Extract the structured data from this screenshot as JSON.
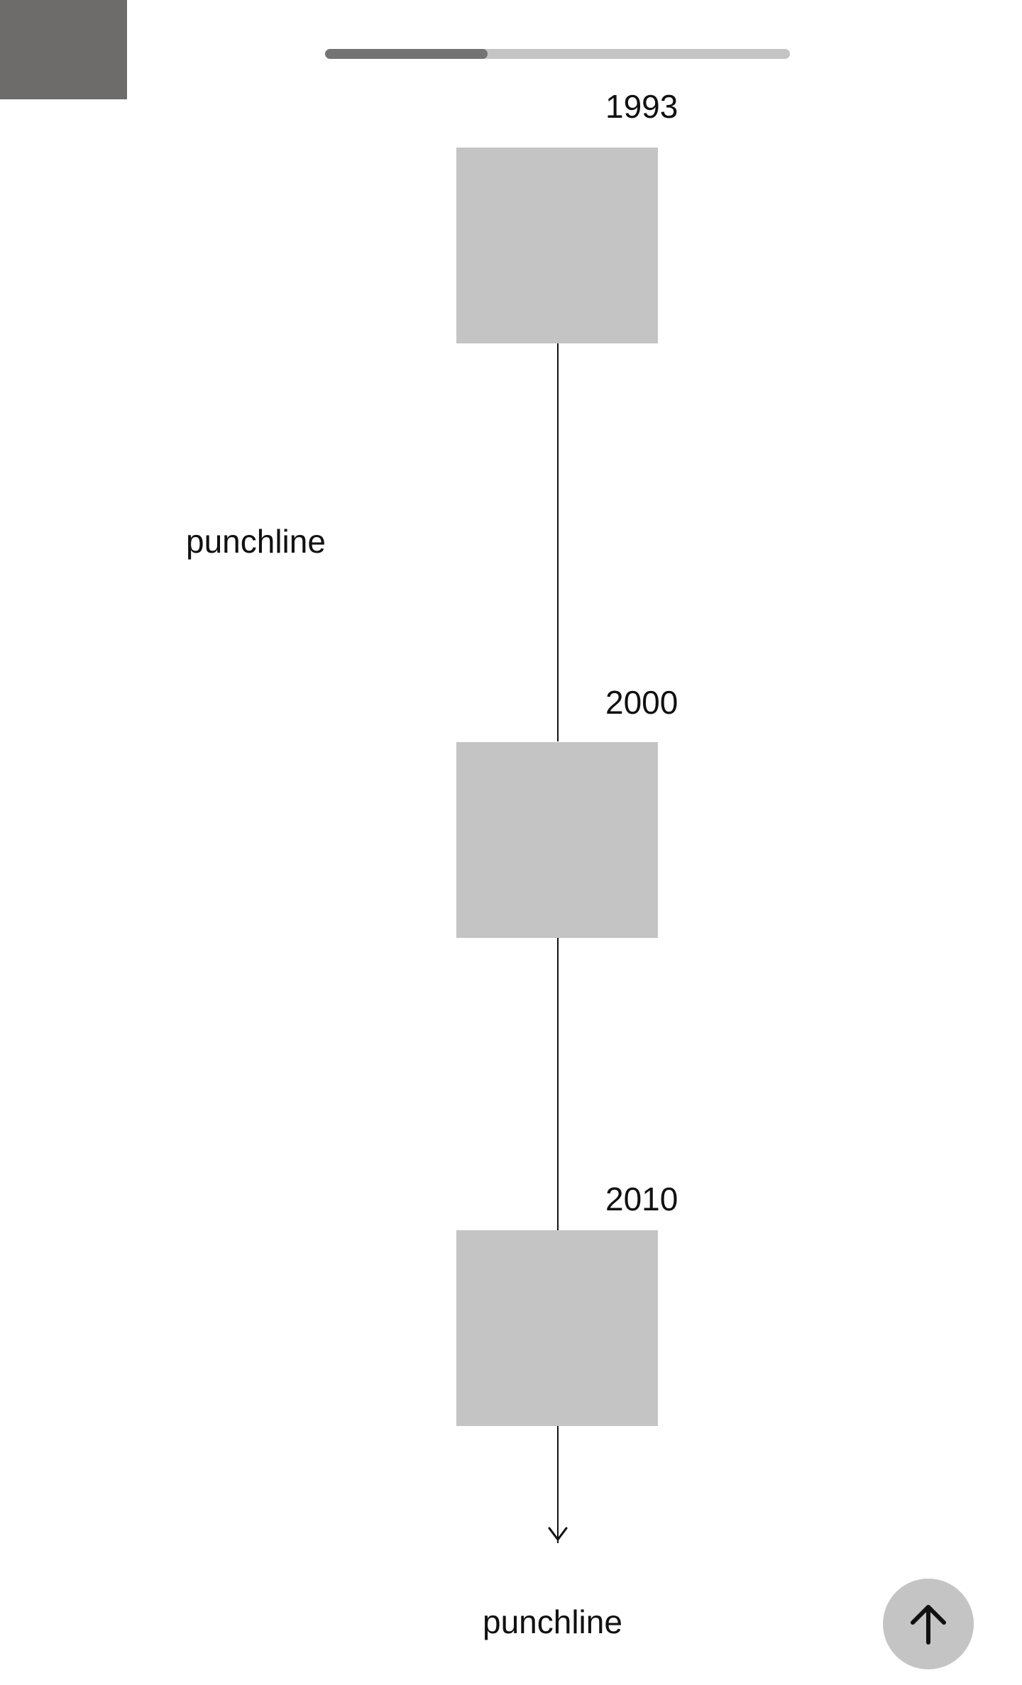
{
  "header": {
    "logo": "placeholder-block",
    "progress": {
      "value": 0.35,
      "track_color": "#c4c4c4",
      "fill_color": "#737373"
    }
  },
  "timeline": {
    "items": [
      {
        "year": "1993",
        "image": "image-placeholder"
      },
      {
        "year": "2000",
        "image": "image-placeholder"
      },
      {
        "year": "2010",
        "image": "image-placeholder"
      }
    ],
    "side_text": "punchline",
    "end_text": "punchline",
    "line_icon": "down-arrow-icon"
  },
  "scroll_top": {
    "icon": "arrow-up-icon",
    "button_color": "#c4c4c4"
  }
}
